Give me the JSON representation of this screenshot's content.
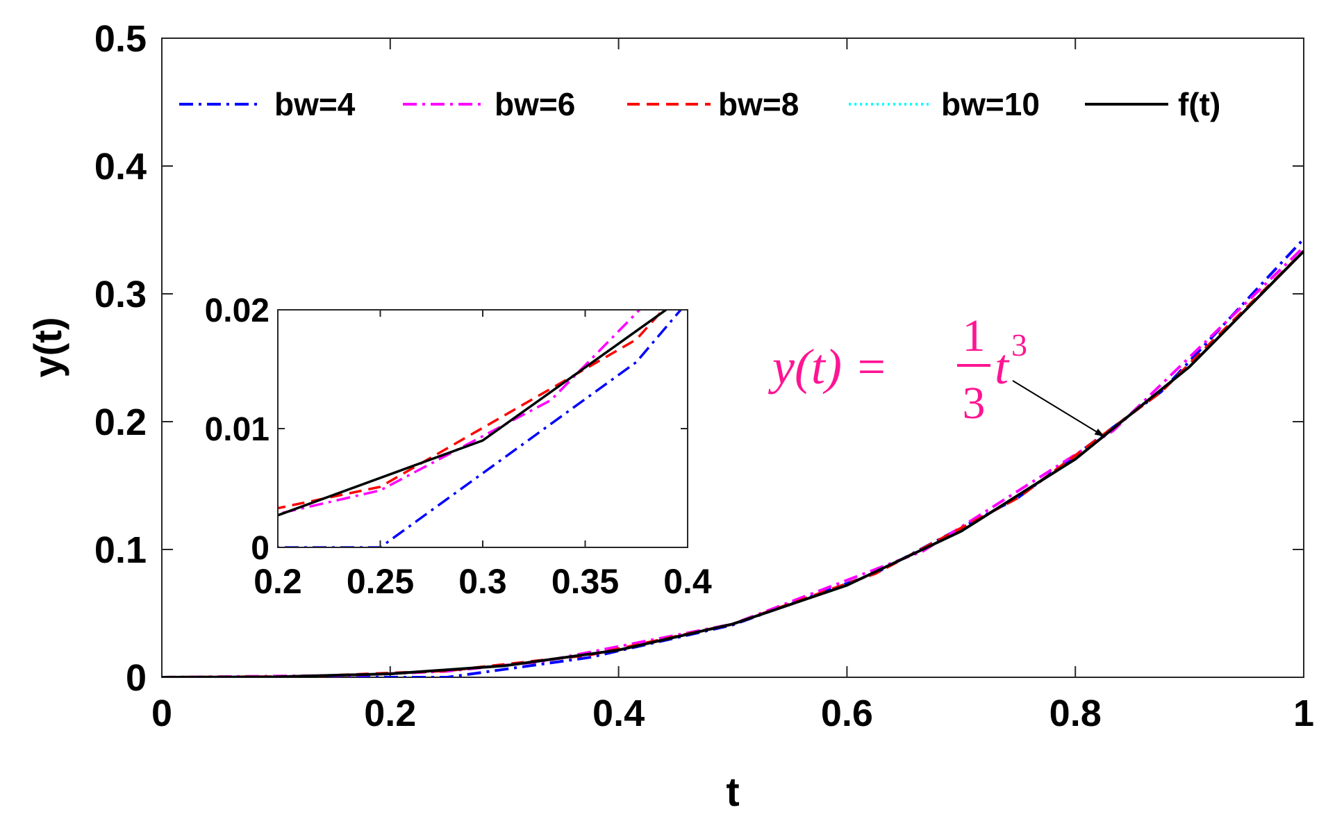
{
  "chart_data": {
    "type": "line",
    "xlabel": "t",
    "ylabel": "y(t)",
    "xlim": [
      0,
      1
    ],
    "ylim": [
      0,
      0.5
    ],
    "xticks": [
      "0",
      "0.2",
      "0.4",
      "0.6",
      "0.8",
      "1"
    ],
    "yticks": [
      "0",
      "0.1",
      "0.2",
      "0.3",
      "0.4",
      "0.5"
    ],
    "grid": false,
    "legend": {
      "placement": "top",
      "orientation": "horizontal"
    },
    "series": [
      {
        "name": "bw=4",
        "color": "#0000ff",
        "style": "dash-dot",
        "x": [
          0,
          0.25,
          0.375,
          0.5,
          0.625,
          0.75,
          0.875,
          1.0
        ],
        "y": [
          0,
          0,
          0.0156,
          0.041,
          0.0815,
          0.1406,
          0.2233,
          0.343
        ]
      },
      {
        "name": "bw=6",
        "color": "#ff00ff",
        "style": "dash-dot",
        "x": [
          0,
          0.1667,
          0.25,
          0.3333,
          0.5,
          0.6667,
          0.8333,
          1.0
        ],
        "y": [
          0,
          0.0015,
          0.0048,
          0.0124,
          0.0417,
          0.0988,
          0.193,
          0.3365
        ]
      },
      {
        "name": "bw=8",
        "color": "#ff0000",
        "style": "dashed",
        "x": [
          0,
          0.125,
          0.25,
          0.375,
          0.5,
          0.625,
          0.75,
          0.875,
          1.0
        ],
        "y": [
          0,
          0.0006,
          0.0051,
          0.0175,
          0.0416,
          0.0812,
          0.1405,
          0.2232,
          0.3335
        ]
      },
      {
        "name": "bw=10",
        "color": "#00ffff",
        "style": "dotted",
        "x": [
          0,
          0.1,
          0.2,
          0.3,
          0.4,
          0.5,
          0.6,
          0.7,
          0.8,
          0.9,
          1.0
        ],
        "y": [
          0,
          0.0003,
          0.0027,
          0.009,
          0.0213,
          0.0417,
          0.072,
          0.1143,
          0.1707,
          0.243,
          0.3334
        ]
      },
      {
        "name": "f(t)",
        "color": "#000000",
        "style": "solid",
        "function": "t^3/3",
        "x": [
          0,
          0.1,
          0.2,
          0.3,
          0.4,
          0.5,
          0.6,
          0.7,
          0.8,
          0.9,
          1.0
        ],
        "y": [
          0,
          0.0003,
          0.0027,
          0.009,
          0.0213,
          0.0417,
          0.072,
          0.1143,
          0.1707,
          0.243,
          0.3333
        ]
      }
    ],
    "annotation": {
      "color": "#ff1493",
      "lhs": "y(t) =",
      "frac_num": "1",
      "frac_den": "3",
      "tail": "t",
      "exponent": "3",
      "arrow_target": [
        0.825,
        0.1875
      ]
    },
    "inset": {
      "xlim": [
        0.2,
        0.4
      ],
      "ylim": [
        0,
        0.02
      ],
      "xticks": [
        "0.2",
        "0.25",
        "0.3",
        "0.35",
        "0.4"
      ],
      "yticks": [
        "0",
        "0.01",
        "0.02"
      ]
    }
  }
}
